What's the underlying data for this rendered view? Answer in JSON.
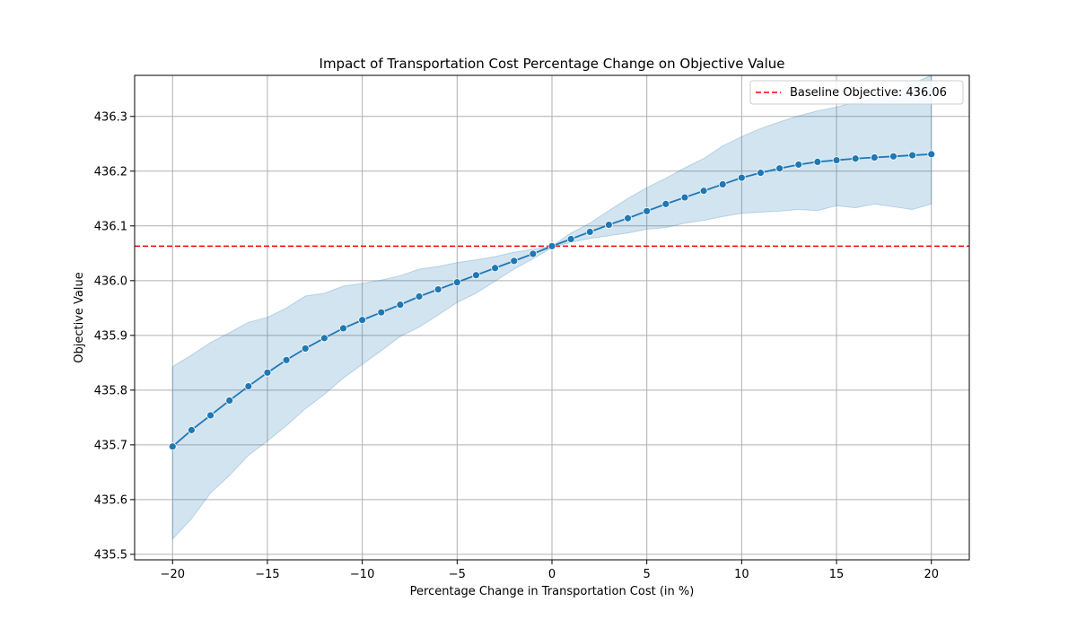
{
  "chart_data": {
    "type": "line",
    "title": "Impact of Transportation Cost Percentage Change on Objective Value",
    "xlabel": "Percentage Change in Transportation Cost (in %)",
    "ylabel": "Objective Value",
    "xlim": [
      -22,
      22
    ],
    "ylim": [
      435.49,
      436.375
    ],
    "xticks": [
      -20,
      -15,
      -10,
      -5,
      0,
      5,
      10,
      15,
      20
    ],
    "xtick_labels": [
      "−20",
      "−15",
      "−10",
      "−5",
      "0",
      "5",
      "10",
      "15",
      "20"
    ],
    "yticks": [
      435.5,
      435.6,
      435.7,
      435.8,
      435.9,
      436.0,
      436.1,
      436.2,
      436.3
    ],
    "ytick_labels": [
      "435.5",
      "435.6",
      "435.7",
      "435.8",
      "435.9",
      "436.0",
      "436.1",
      "436.2",
      "436.3"
    ],
    "grid": true,
    "legend_position": "top-right",
    "baseline": {
      "label": "Baseline Objective: 436.06",
      "value": 436.063,
      "color": "#ff0000",
      "style": "dashed"
    },
    "series": [
      {
        "color": "#1f77b4",
        "band_color": "#1f77b4",
        "x": [
          -20,
          -19,
          -18,
          -17,
          -16,
          -15,
          -14,
          -13,
          -12,
          -11,
          -10,
          -9,
          -8,
          -7,
          -6,
          -5,
          -4,
          -3,
          -2,
          -1,
          0,
          1,
          2,
          3,
          4,
          5,
          6,
          7,
          8,
          9,
          10,
          11,
          12,
          13,
          14,
          15,
          16,
          17,
          18,
          19,
          20
        ],
        "y": [
          435.697,
          435.727,
          435.754,
          435.781,
          435.807,
          435.832,
          435.855,
          435.876,
          435.895,
          435.913,
          435.928,
          435.942,
          435.956,
          435.971,
          435.984,
          435.997,
          436.01,
          436.023,
          436.036,
          436.049,
          436.063,
          436.076,
          436.089,
          436.102,
          436.114,
          436.127,
          436.14,
          436.152,
          436.164,
          436.176,
          436.188,
          436.197,
          436.205,
          436.212,
          436.217,
          436.22,
          436.223,
          436.225,
          436.227,
          436.229,
          436.231
        ],
        "lower": [
          435.528,
          435.565,
          435.612,
          435.644,
          435.681,
          435.707,
          435.735,
          435.766,
          435.792,
          435.822,
          435.847,
          435.872,
          435.898,
          435.915,
          435.937,
          435.96,
          435.977,
          435.999,
          436.021,
          436.04,
          436.06,
          436.07,
          436.077,
          436.082,
          436.087,
          436.094,
          436.097,
          436.105,
          436.11,
          436.117,
          436.123,
          436.125,
          436.127,
          436.13,
          436.128,
          436.137,
          436.133,
          436.14,
          436.135,
          436.13,
          436.14
        ],
        "upper": [
          435.843,
          435.864,
          435.887,
          435.905,
          435.924,
          435.933,
          435.95,
          435.972,
          435.977,
          435.99,
          435.995,
          436.001,
          436.009,
          436.021,
          436.026,
          436.033,
          436.038,
          436.044,
          436.052,
          436.057,
          436.063,
          436.087,
          436.105,
          436.128,
          436.15,
          436.17,
          436.187,
          436.206,
          436.223,
          436.246,
          436.263,
          436.278,
          436.29,
          436.301,
          436.31,
          436.317,
          436.326,
          436.335,
          436.34,
          436.36,
          436.375
        ]
      }
    ]
  }
}
